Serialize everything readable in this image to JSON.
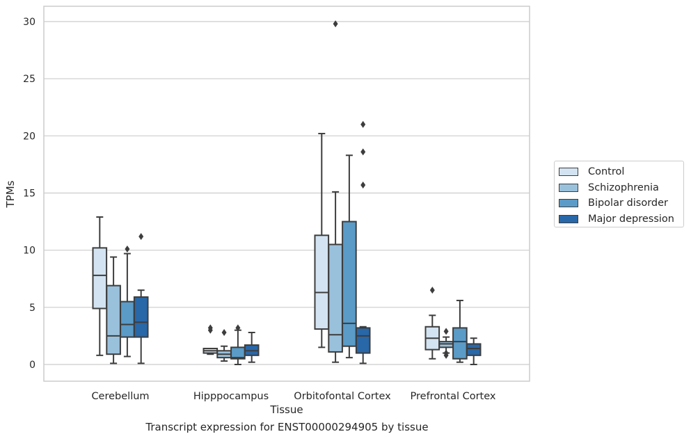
{
  "chart_data": {
    "type": "box",
    "xlabel": "Tissue",
    "ylabel": "TPMs",
    "ylim": [
      -1.5,
      31.3
    ],
    "yticks": [
      0,
      5,
      10,
      15,
      20,
      25,
      30
    ],
    "grid": true,
    "categories": [
      "Cerebellum",
      "Hipppocampus",
      "Orbitofontal Cortex",
      "Prefrontal Cortex"
    ],
    "legend_position": "right",
    "series": [
      {
        "name": "Control",
        "color": "#d3e3f1",
        "boxes": [
          {
            "low": 0.8,
            "q1": 4.9,
            "median": 7.8,
            "q3": 10.2,
            "high": 12.9,
            "outliers": []
          },
          {
            "low": 0.9,
            "q1": 1.0,
            "median": 1.2,
            "q3": 1.4,
            "high": 1.4,
            "outliers": [
              3.0,
              3.2
            ]
          },
          {
            "low": 1.5,
            "q1": 3.1,
            "median": 6.3,
            "q3": 11.3,
            "high": 20.2,
            "outliers": []
          },
          {
            "low": 0.5,
            "q1": 1.3,
            "median": 2.3,
            "q3": 3.3,
            "high": 4.3,
            "outliers": [
              6.5
            ]
          }
        ]
      },
      {
        "name": "Schizophrenia",
        "color": "#9ac1dc",
        "boxes": [
          {
            "low": 0.1,
            "q1": 0.9,
            "median": 2.5,
            "q3": 6.9,
            "high": 9.4,
            "outliers": []
          },
          {
            "low": 0.3,
            "q1": 0.6,
            "median": 0.9,
            "q3": 1.2,
            "high": 1.6,
            "outliers": [
              2.8
            ]
          },
          {
            "low": 0.2,
            "q1": 1.1,
            "median": 2.6,
            "q3": 10.5,
            "high": 15.1,
            "outliers": [
              29.8
            ]
          },
          {
            "low": 1.0,
            "q1": 1.5,
            "median": 1.8,
            "q3": 2.0,
            "high": 2.4,
            "outliers": [
              0.8,
              1.0,
              2.9
            ]
          }
        ]
      },
      {
        "name": "Bipolar disorder",
        "color": "#5a9bc8",
        "boxes": [
          {
            "low": 0.7,
            "q1": 2.4,
            "median": 3.5,
            "q3": 5.5,
            "high": 9.7,
            "outliers": [
              10.1
            ]
          },
          {
            "low": 0.0,
            "q1": 0.5,
            "median": 0.6,
            "q3": 1.5,
            "high": 3.0,
            "outliers": [
              3.2
            ]
          },
          {
            "low": 0.6,
            "q1": 1.6,
            "median": 3.6,
            "q3": 12.5,
            "high": 18.3,
            "outliers": []
          },
          {
            "low": 0.2,
            "q1": 0.5,
            "median": 2.0,
            "q3": 3.2,
            "high": 5.6,
            "outliers": []
          }
        ]
      },
      {
        "name": "Major depression",
        "color": "#2867a8",
        "boxes": [
          {
            "low": 0.1,
            "q1": 2.4,
            "median": 3.7,
            "q3": 5.9,
            "high": 6.5,
            "outliers": [
              11.2
            ]
          },
          {
            "low": 0.2,
            "q1": 0.8,
            "median": 1.2,
            "q3": 1.7,
            "high": 2.8,
            "outliers": []
          },
          {
            "low": 0.1,
            "q1": 1.0,
            "median": 2.5,
            "q3": 3.2,
            "high": 3.3,
            "outliers": [
              15.7,
              18.6,
              21.0
            ]
          },
          {
            "low": 0.0,
            "q1": 0.8,
            "median": 1.4,
            "q3": 1.8,
            "high": 2.3,
            "outliers": []
          }
        ]
      }
    ]
  },
  "caption": "Transcript expression for ENST00000294905 by tissue"
}
